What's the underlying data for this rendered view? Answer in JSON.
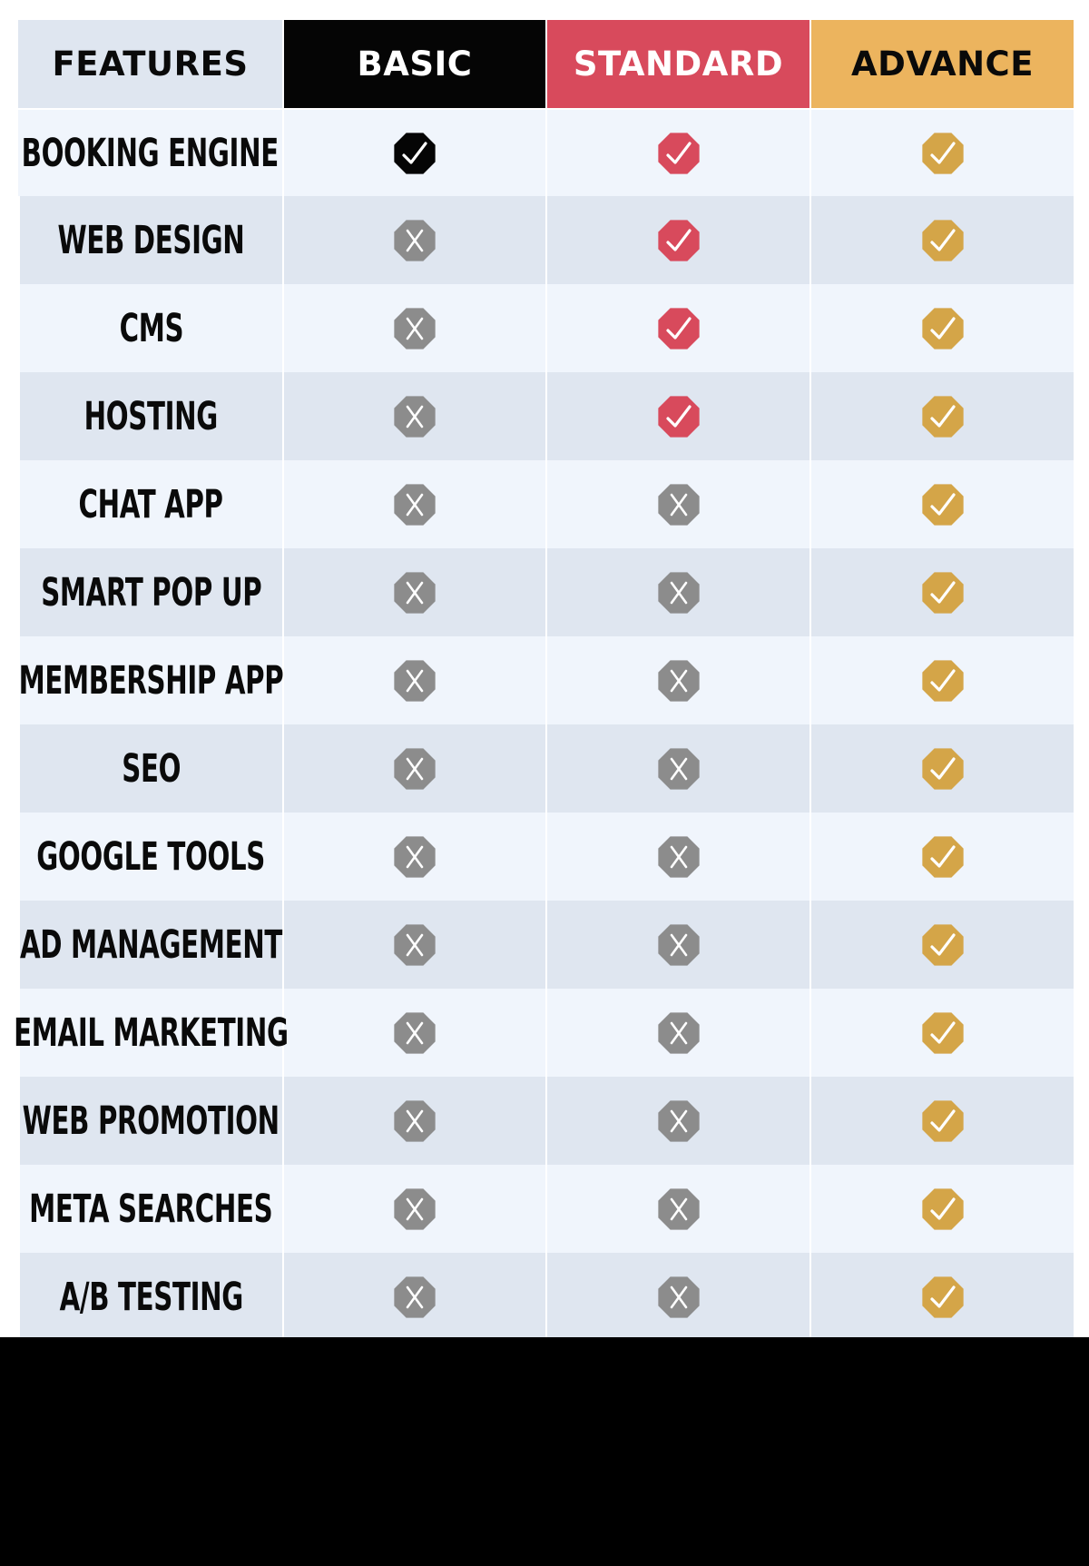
{
  "header": {
    "features": "FEATURES",
    "basic": "BASIC",
    "standard": "STANDARD",
    "advance": "ADVANCE"
  },
  "colors": {
    "basic": "#050505",
    "standard": "#d84a5c",
    "advance": "#ecb45e",
    "advance_mark": "#d4a548",
    "cross_mark": "#8c8c8c",
    "row_light": "#f0f5fc",
    "row_dark": "#dfe6f0"
  },
  "icons": {
    "included": "checkmark-icon",
    "excluded": "cross-icon"
  },
  "features": [
    {
      "label": "BOOKING ENGINE",
      "basic": true,
      "standard": true,
      "advance": true
    },
    {
      "label": "WEB DESIGN",
      "basic": false,
      "standard": true,
      "advance": true
    },
    {
      "label": "CMS",
      "basic": false,
      "standard": true,
      "advance": true
    },
    {
      "label": "HOSTING",
      "basic": false,
      "standard": true,
      "advance": true
    },
    {
      "label": "CHAT APP",
      "basic": false,
      "standard": false,
      "advance": true
    },
    {
      "label": "SMART POP UP",
      "basic": false,
      "standard": false,
      "advance": true
    },
    {
      "label": "MEMBERSHIP APP",
      "basic": false,
      "standard": false,
      "advance": true
    },
    {
      "label": "SEO",
      "basic": false,
      "standard": false,
      "advance": true
    },
    {
      "label": "GOOGLE TOOLS",
      "basic": false,
      "standard": false,
      "advance": true
    },
    {
      "label": "AD MANAGEMENT",
      "basic": false,
      "standard": false,
      "advance": true
    },
    {
      "label": "EMAIL MARKETING",
      "basic": false,
      "standard": false,
      "advance": true
    },
    {
      "label": "WEB PROMOTION",
      "basic": false,
      "standard": false,
      "advance": true
    },
    {
      "label": "META SEARCHES",
      "basic": false,
      "standard": false,
      "advance": true
    },
    {
      "label": "A/B TESTING",
      "basic": false,
      "standard": false,
      "advance": true
    }
  ]
}
